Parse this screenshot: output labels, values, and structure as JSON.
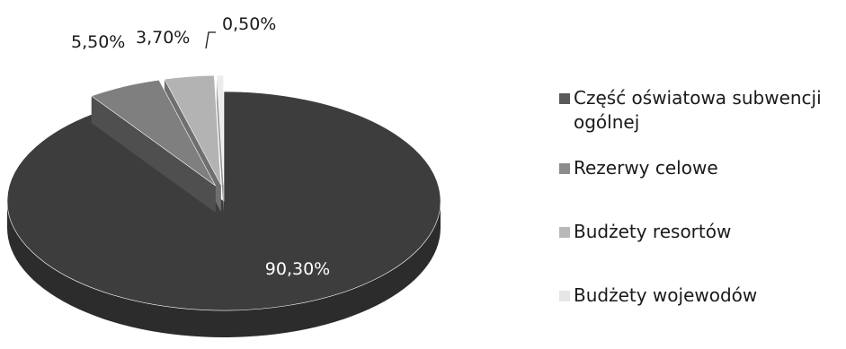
{
  "chart_data": {
    "type": "pie",
    "variant": "3d-exploded",
    "title": "",
    "unit": "%",
    "legend_position": "right",
    "slices": [
      {
        "name": "Część oświatowa subwencji ogólnej",
        "value": 90.3,
        "label": "90,30%",
        "color": "#3d3d3d"
      },
      {
        "name": "Rezerwy celowe",
        "value": 5.5,
        "label": "5,50%",
        "color": "#7f7f7f"
      },
      {
        "name": "Budżety resortów",
        "value": 3.7,
        "label": "3,70%",
        "color": "#b3b3b3"
      },
      {
        "name": "Budżety wojewodów",
        "value": 0.5,
        "label": "0,50%",
        "color": "#ececec"
      }
    ]
  },
  "legend": {
    "items": [
      {
        "label": "Część oświatowa subwencji\nogólnej",
        "color": "#5a5a5a"
      },
      {
        "label": "Rezerwy celowe",
        "color": "#8c8c8c"
      },
      {
        "label": "Budżety resortów",
        "color": "#b8b8b8"
      },
      {
        "label": "Budżety wojewodów",
        "color": "#e6e6e6"
      }
    ]
  }
}
